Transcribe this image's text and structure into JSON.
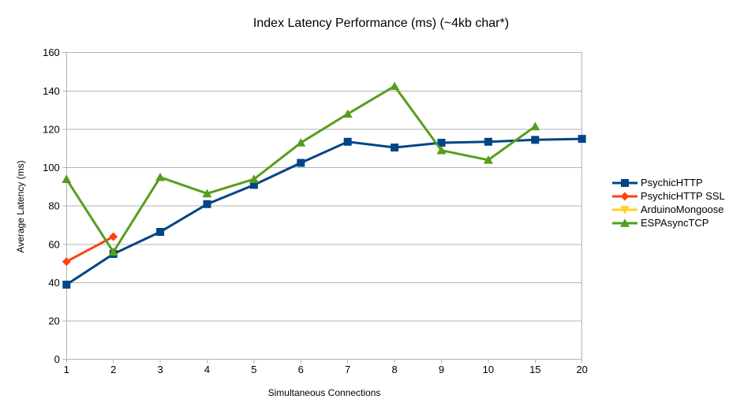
{
  "chart_data": {
    "type": "line",
    "title": "Index Latency Performance (ms) (~4kb char*)",
    "xlabel": "Simultaneous Connections",
    "ylabel": "Average Latency (ms)",
    "categories": [
      "1",
      "2",
      "3",
      "4",
      "5",
      "6",
      "7",
      "8",
      "9",
      "10",
      "15",
      "20"
    ],
    "ylim": [
      0,
      160
    ],
    "yticks": [
      0,
      20,
      40,
      60,
      80,
      100,
      120,
      140,
      160
    ],
    "grid": "horizontal",
    "legend_position": "right-middle",
    "background_color": "#ffffff",
    "grid_color": "#b3b3b3",
    "axis_color": "#b3b3b3",
    "text_color": "#000000",
    "series": [
      {
        "name": "PsychicHTTP",
        "color": "#004586",
        "marker": "square",
        "values": [
          39,
          55,
          66.5,
          81,
          91,
          102.5,
          113.5,
          110.5,
          113,
          113.5,
          114.5,
          115
        ]
      },
      {
        "name": "PsychicHTTP SSL",
        "color": "#ff420e",
        "marker": "diamond",
        "values": [
          51,
          64,
          null,
          null,
          null,
          null,
          null,
          null,
          null,
          null,
          null,
          null
        ]
      },
      {
        "name": "ArduinoMongoose",
        "color": "#ffd320",
        "marker": "triangle-down",
        "values": [
          null,
          null,
          null,
          null,
          null,
          null,
          null,
          null,
          null,
          null,
          null,
          null
        ]
      },
      {
        "name": "ESPAsyncTCP",
        "color": "#579d1c",
        "marker": "triangle-up",
        "values": [
          94,
          56,
          95,
          86.5,
          94,
          113,
          128,
          142.5,
          109,
          104,
          121.5,
          null
        ]
      }
    ]
  }
}
